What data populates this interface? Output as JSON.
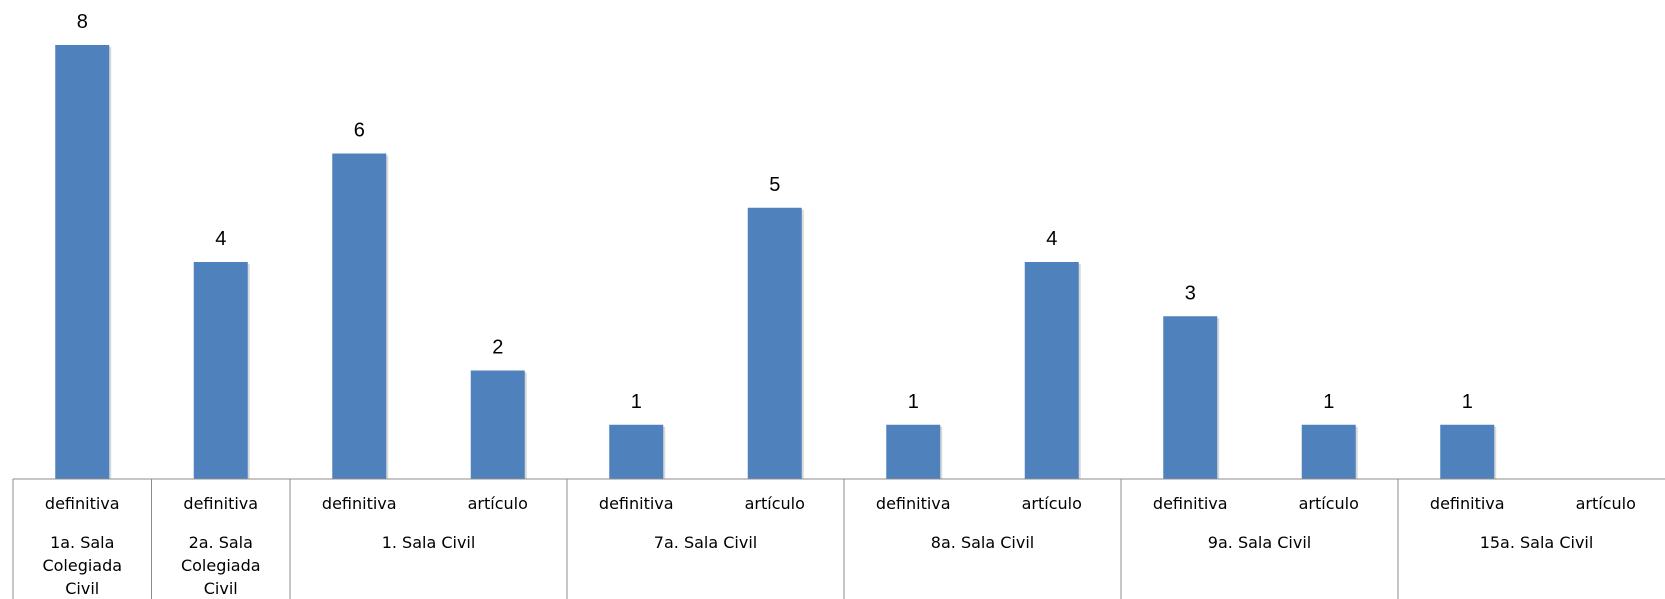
{
  "chart_data": {
    "type": "bar",
    "colors": {
      "bar": "#4f81bd"
    },
    "ylim": [
      0,
      8
    ],
    "groups": [
      {
        "label": [
          "1a. Sala",
          "Colegiada",
          "Civil"
        ],
        "categories": [
          "definitiva"
        ],
        "values": [
          8
        ]
      },
      {
        "label": [
          "2a. Sala",
          "Colegiada",
          "Civil"
        ],
        "categories": [
          "definitiva"
        ],
        "values": [
          4
        ]
      },
      {
        "label": [
          "1. Sala Civil"
        ],
        "categories": [
          "definitiva",
          "artículo"
        ],
        "values": [
          6,
          2
        ]
      },
      {
        "label": [
          "7a. Sala Civil"
        ],
        "categories": [
          "definitiva",
          "artículo"
        ],
        "values": [
          1,
          5
        ]
      },
      {
        "label": [
          "8a. Sala Civil"
        ],
        "categories": [
          "definitiva",
          "artículo"
        ],
        "values": [
          1,
          4
        ]
      },
      {
        "label": [
          "9a. Sala Civil"
        ],
        "categories": [
          "definitiva",
          "artículo"
        ],
        "values": [
          3,
          1
        ]
      },
      {
        "label": [
          "15a. Sala Civil"
        ],
        "categories": [
          "definitiva",
          "artículo"
        ],
        "values": [
          1,
          null
        ]
      }
    ]
  }
}
